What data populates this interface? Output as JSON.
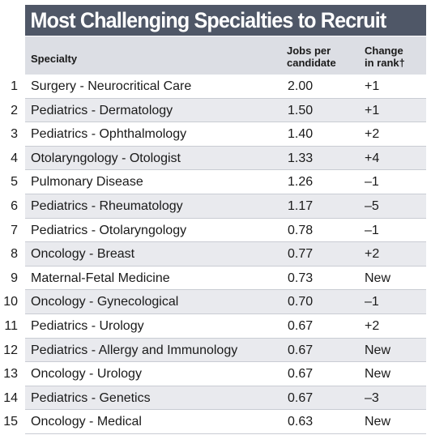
{
  "title": "Most Challenging Specialties to Recruit",
  "headers": {
    "specialty": "Specialty",
    "jobs_line1": "Jobs per",
    "jobs_line2": "candidate",
    "change_line1": "Change",
    "change_line2": "in rank†"
  },
  "colors": {
    "title_bg": "#4f5767",
    "header_bg": "#dcdee4",
    "row_shade": "#e9eaee"
  },
  "rows": [
    {
      "rank": "1",
      "specialty": "Surgery - Neurocritical Care",
      "jobs": "2.00",
      "change": "+1"
    },
    {
      "rank": "2",
      "specialty": "Pediatrics - Dermatology",
      "jobs": "1.50",
      "change": "+1"
    },
    {
      "rank": "3",
      "specialty": "Pediatrics - Ophthalmology",
      "jobs": "1.40",
      "change": "+2"
    },
    {
      "rank": "4",
      "specialty": "Otolaryngology - Otologist",
      "jobs": "1.33",
      "change": "+4"
    },
    {
      "rank": "5",
      "specialty": "Pulmonary Disease",
      "jobs": "1.26",
      "change": "–1"
    },
    {
      "rank": "6",
      "specialty": "Pediatrics - Rheumatology",
      "jobs": "1.17",
      "change": "–5"
    },
    {
      "rank": "7",
      "specialty": "Pediatrics - Otolaryngology",
      "jobs": "0.78",
      "change": "–1"
    },
    {
      "rank": "8",
      "specialty": "Oncology - Breast",
      "jobs": "0.77",
      "change": "+2"
    },
    {
      "rank": "9",
      "specialty": "Maternal-Fetal Medicine",
      "jobs": "0.73",
      "change": "New"
    },
    {
      "rank": "10",
      "specialty": "Oncology - Gynecological",
      "jobs": "0.70",
      "change": "–1"
    },
    {
      "rank": "11",
      "specialty": "Pediatrics - Urology",
      "jobs": "0.67",
      "change": "+2"
    },
    {
      "rank": "12",
      "specialty": "Pediatrics - Allergy and Immunology",
      "jobs": "0.67",
      "change": "New"
    },
    {
      "rank": "13",
      "specialty": "Oncology - Urology",
      "jobs": "0.67",
      "change": "New"
    },
    {
      "rank": "14",
      "specialty": "Pediatrics - Genetics",
      "jobs": "0.67",
      "change": "–3"
    },
    {
      "rank": "15",
      "specialty": "Oncology - Medical",
      "jobs": "0.63",
      "change": "New"
    }
  ]
}
